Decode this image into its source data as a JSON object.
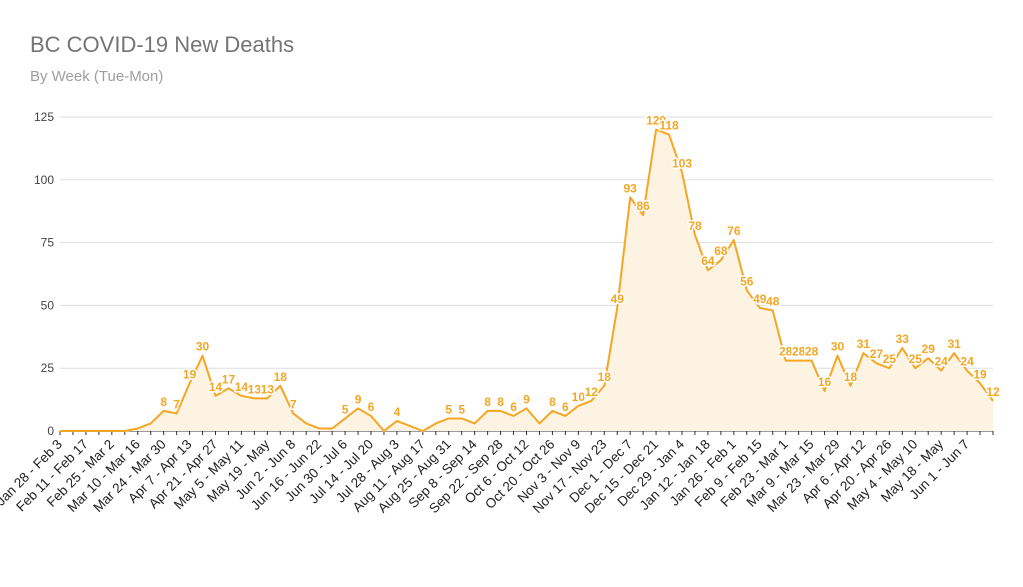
{
  "chart_data": {
    "type": "area",
    "title": "BC COVID-19 New Deaths",
    "subtitle": "By Week (Tue-Mon)",
    "xlabel": "",
    "ylabel": "",
    "ylim": [
      0,
      125
    ],
    "yticks": [
      0,
      25,
      50,
      75,
      100,
      125
    ],
    "grid": true,
    "color": "#F5A623",
    "fill_color": "#FDF3E3",
    "x_tick_labels": [
      "Jan 28 - Feb 3",
      "Feb 11 - Feb 17",
      "Feb 25 - Mar 2",
      "Mar 10 - Mar 16",
      "Mar 24 - Mar 30",
      "Apr 7 - Apr 13",
      "Apr 21 - Apr 27",
      "May 5 - May 11",
      "May 19 - May",
      "Jun 2 - Jun 8",
      "Jun 16 - Jun 22",
      "Jun 30 - Jul 6",
      "Jul 14 - Jul 20",
      "Jul 28 - Aug 3",
      "Aug 11 - Aug 17",
      "Aug 25 - Aug 31",
      "Sep 8 - Sep 14",
      "Sep 22 - Sep 28",
      "Oct 6 - Oct 12",
      "Oct 20 - Oct 26",
      "Nov 3 - Nov 9",
      "Nov 17 - Nov 23",
      "Dec 1 - Dec 7",
      "Dec 15 - Dec 21",
      "Dec 29 - Jan 4",
      "Jan 12 - Jan 18",
      "Jan 26 - Feb 1",
      "Feb 9 - Feb 15",
      "Feb 23 - Mar 1",
      "Mar 9 - Mar 15",
      "Mar 23 - Mar 29",
      "Apr 6 - Apr 12",
      "Apr 20 - Apr 26",
      "May 4 - May 10",
      "May 18 - May",
      "Jun 1 - Jun 7"
    ],
    "values": [
      0,
      0,
      0,
      0,
      0,
      0,
      1,
      3,
      8,
      7,
      19,
      30,
      14,
      17,
      14,
      13,
      13,
      18,
      7,
      3,
      1,
      1,
      5,
      9,
      6,
      0,
      4,
      2,
      0,
      3,
      5,
      5,
      3,
      8,
      8,
      6,
      9,
      3,
      8,
      6,
      10,
      12,
      18,
      49,
      93,
      86,
      120,
      118,
      103,
      78,
      64,
      68,
      76,
      56,
      49,
      48,
      28,
      28,
      28,
      16,
      30,
      18,
      31,
      27,
      25,
      33,
      25,
      29,
      24,
      31,
      24,
      19,
      12
    ],
    "data_labels": [
      "",
      "",
      "",
      "",
      "",
      "",
      "",
      "",
      "8",
      "7",
      "19",
      "30",
      "14",
      "17",
      "14",
      "13",
      "13",
      "18",
      "7",
      "",
      "",
      "",
      "5",
      "9",
      "6",
      "",
      "4",
      "",
      "",
      "",
      "5",
      "5",
      "",
      "8",
      "8",
      "6",
      "9",
      "",
      "8",
      "6",
      "10",
      "12",
      "18",
      "49",
      "93",
      "86",
      "120",
      "118",
      "103",
      "78",
      "64",
      "68",
      "76",
      "56",
      "49",
      "48",
      "28",
      "28",
      "28",
      "16",
      "30",
      "18",
      "31",
      "27",
      "25",
      "33",
      "25",
      "29",
      "24",
      "31",
      "24",
      "19",
      "12"
    ]
  }
}
